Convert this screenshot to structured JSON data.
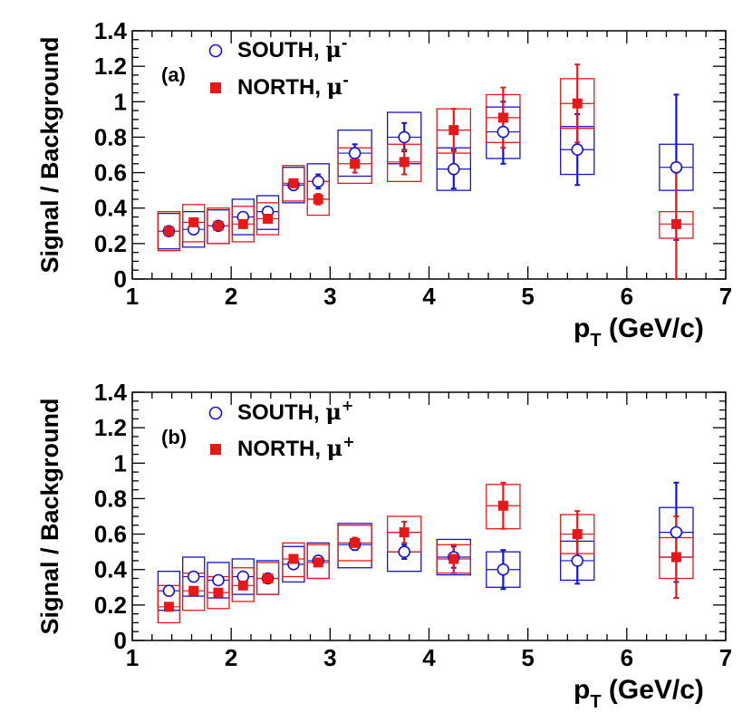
{
  "colors": {
    "south": "#1414d2",
    "north": "#e81818",
    "axis": "#000000"
  },
  "chart_data": [
    {
      "type": "scatter",
      "panel_label": "(a)",
      "ylabel": "Signal / Background",
      "xlabel": "p",
      "xlabel_sub": "T",
      "xlabel_unit": " (GeV/c)",
      "xlim": [
        1,
        7
      ],
      "ylim": [
        0,
        1.4
      ],
      "xticks": [
        "1",
        "2",
        "3",
        "4",
        "5",
        "6",
        "7"
      ],
      "yticks": [
        "0",
        "0.2",
        "0.4",
        "0.6",
        "0.8",
        "1",
        "1.2",
        "1.4"
      ],
      "series": [
        {
          "name": "SOUTH",
          "particle": "μ",
          "charge": "-",
          "marker": "open-circle",
          "points": [
            {
              "x": 1.37,
              "y": 0.27,
              "ylo": 0.26,
              "yhi": 0.28,
              "sys_lo": 0.17,
              "sys_hi": 0.37
            },
            {
              "x": 1.62,
              "y": 0.28,
              "ylo": 0.27,
              "yhi": 0.29,
              "sys_lo": 0.18,
              "sys_hi": 0.38
            },
            {
              "x": 1.87,
              "y": 0.3,
              "ylo": 0.29,
              "yhi": 0.31,
              "sys_lo": 0.2,
              "sys_hi": 0.39
            },
            {
              "x": 2.12,
              "y": 0.35,
              "ylo": 0.33,
              "yhi": 0.37,
              "sys_lo": 0.25,
              "sys_hi": 0.45
            },
            {
              "x": 2.37,
              "y": 0.38,
              "ylo": 0.36,
              "yhi": 0.4,
              "sys_lo": 0.28,
              "sys_hi": 0.47
            },
            {
              "x": 2.63,
              "y": 0.53,
              "ylo": 0.51,
              "yhi": 0.55,
              "sys_lo": 0.43,
              "sys_hi": 0.63
            },
            {
              "x": 2.88,
              "y": 0.55,
              "ylo": 0.51,
              "yhi": 0.59,
              "sys_lo": 0.45,
              "sys_hi": 0.65
            },
            {
              "x": 3.25,
              "y": 0.71,
              "ylo": 0.66,
              "yhi": 0.76,
              "sys_lo": 0.58,
              "sys_hi": 0.84
            },
            {
              "x": 3.75,
              "y": 0.8,
              "ylo": 0.72,
              "yhi": 0.88,
              "sys_lo": 0.65,
              "sys_hi": 0.94
            },
            {
              "x": 4.25,
              "y": 0.62,
              "ylo": 0.51,
              "yhi": 0.73,
              "sys_lo": 0.5,
              "sys_hi": 0.74
            },
            {
              "x": 4.75,
              "y": 0.83,
              "ylo": 0.65,
              "yhi": 1.0,
              "sys_lo": 0.68,
              "sys_hi": 0.97
            },
            {
              "x": 5.5,
              "y": 0.73,
              "ylo": 0.53,
              "yhi": 0.93,
              "sys_lo": 0.59,
              "sys_hi": 0.86
            },
            {
              "x": 6.5,
              "y": 0.63,
              "ylo": 0.22,
              "yhi": 1.04,
              "sys_lo": 0.5,
              "sys_hi": 0.76
            }
          ]
        },
        {
          "name": "NORTH",
          "particle": "μ",
          "charge": "-",
          "marker": "filled-square",
          "points": [
            {
              "x": 1.37,
              "y": 0.27,
              "ylo": 0.26,
              "yhi": 0.28,
              "sys_lo": 0.16,
              "sys_hi": 0.38
            },
            {
              "x": 1.62,
              "y": 0.32,
              "ylo": 0.31,
              "yhi": 0.33,
              "sys_lo": 0.21,
              "sys_hi": 0.42
            },
            {
              "x": 1.87,
              "y": 0.3,
              "ylo": 0.29,
              "yhi": 0.31,
              "sys_lo": 0.2,
              "sys_hi": 0.4
            },
            {
              "x": 2.12,
              "y": 0.31,
              "ylo": 0.3,
              "yhi": 0.32,
              "sys_lo": 0.21,
              "sys_hi": 0.41
            },
            {
              "x": 2.37,
              "y": 0.34,
              "ylo": 0.33,
              "yhi": 0.35,
              "sys_lo": 0.25,
              "sys_hi": 0.43
            },
            {
              "x": 2.63,
              "y": 0.54,
              "ylo": 0.53,
              "yhi": 0.55,
              "sys_lo": 0.44,
              "sys_hi": 0.64
            },
            {
              "x": 2.88,
              "y": 0.45,
              "ylo": 0.42,
              "yhi": 0.48,
              "sys_lo": 0.36,
              "sys_hi": 0.55
            },
            {
              "x": 3.25,
              "y": 0.65,
              "ylo": 0.6,
              "yhi": 0.7,
              "sys_lo": 0.54,
              "sys_hi": 0.74
            },
            {
              "x": 3.75,
              "y": 0.66,
              "ylo": 0.59,
              "yhi": 0.73,
              "sys_lo": 0.55,
              "sys_hi": 0.76
            },
            {
              "x": 4.25,
              "y": 0.84,
              "ylo": 0.72,
              "yhi": 0.96,
              "sys_lo": 0.71,
              "sys_hi": 0.96
            },
            {
              "x": 4.75,
              "y": 0.91,
              "ylo": 0.74,
              "yhi": 1.08,
              "sys_lo": 0.77,
              "sys_hi": 1.04
            },
            {
              "x": 5.5,
              "y": 0.99,
              "ylo": 0.77,
              "yhi": 1.21,
              "sys_lo": 0.85,
              "sys_hi": 1.13
            },
            {
              "x": 6.5,
              "y": 0.31,
              "ylo": 0.0,
              "yhi": 0.6,
              "sys_lo": 0.23,
              "sys_hi": 0.38
            }
          ]
        }
      ]
    },
    {
      "type": "scatter",
      "panel_label": "(b)",
      "ylabel": "Signal / Background",
      "xlabel": "p",
      "xlabel_sub": "T",
      "xlabel_unit": " (GeV/c)",
      "xlim": [
        1,
        7
      ],
      "ylim": [
        0,
        1.4
      ],
      "xticks": [
        "1",
        "2",
        "3",
        "4",
        "5",
        "6",
        "7"
      ],
      "yticks": [
        "0",
        "0.2",
        "0.4",
        "0.6",
        "0.8",
        "1",
        "1.2",
        "1.4"
      ],
      "series": [
        {
          "name": "SOUTH",
          "particle": "μ",
          "charge": "+",
          "marker": "open-circle",
          "points": [
            {
              "x": 1.37,
              "y": 0.28,
              "ylo": 0.27,
              "yhi": 0.29,
              "sys_lo": 0.17,
              "sys_hi": 0.39
            },
            {
              "x": 1.62,
              "y": 0.36,
              "ylo": 0.35,
              "yhi": 0.37,
              "sys_lo": 0.25,
              "sys_hi": 0.47
            },
            {
              "x": 1.87,
              "y": 0.34,
              "ylo": 0.33,
              "yhi": 0.35,
              "sys_lo": 0.24,
              "sys_hi": 0.44
            },
            {
              "x": 2.12,
              "y": 0.36,
              "ylo": 0.35,
              "yhi": 0.37,
              "sys_lo": 0.26,
              "sys_hi": 0.46
            },
            {
              "x": 2.37,
              "y": 0.35,
              "ylo": 0.34,
              "yhi": 0.36,
              "sys_lo": 0.26,
              "sys_hi": 0.45
            },
            {
              "x": 2.63,
              "y": 0.43,
              "ylo": 0.42,
              "yhi": 0.44,
              "sys_lo": 0.33,
              "sys_hi": 0.53
            },
            {
              "x": 2.88,
              "y": 0.45,
              "ylo": 0.43,
              "yhi": 0.47,
              "sys_lo": 0.35,
              "sys_hi": 0.55
            },
            {
              "x": 3.25,
              "y": 0.54,
              "ylo": 0.51,
              "yhi": 0.57,
              "sys_lo": 0.41,
              "sys_hi": 0.66
            },
            {
              "x": 3.75,
              "y": 0.5,
              "ylo": 0.46,
              "yhi": 0.54,
              "sys_lo": 0.39,
              "sys_hi": 0.61
            },
            {
              "x": 4.25,
              "y": 0.47,
              "ylo": 0.41,
              "yhi": 0.53,
              "sys_lo": 0.37,
              "sys_hi": 0.57
            },
            {
              "x": 4.75,
              "y": 0.4,
              "ylo": 0.29,
              "yhi": 0.51,
              "sys_lo": 0.3,
              "sys_hi": 0.5
            },
            {
              "x": 5.5,
              "y": 0.45,
              "ylo": 0.32,
              "yhi": 0.58,
              "sys_lo": 0.34,
              "sys_hi": 0.56
            },
            {
              "x": 6.5,
              "y": 0.61,
              "ylo": 0.33,
              "yhi": 0.89,
              "sys_lo": 0.47,
              "sys_hi": 0.75
            }
          ]
        },
        {
          "name": "NORTH",
          "particle": "μ",
          "charge": "+",
          "marker": "filled-square",
          "points": [
            {
              "x": 1.37,
              "y": 0.19,
              "ylo": 0.18,
              "yhi": 0.2,
              "sys_lo": 0.1,
              "sys_hi": 0.31
            },
            {
              "x": 1.62,
              "y": 0.28,
              "ylo": 0.27,
              "yhi": 0.29,
              "sys_lo": 0.17,
              "sys_hi": 0.38
            },
            {
              "x": 1.87,
              "y": 0.27,
              "ylo": 0.26,
              "yhi": 0.28,
              "sys_lo": 0.18,
              "sys_hi": 0.36
            },
            {
              "x": 2.12,
              "y": 0.31,
              "ylo": 0.3,
              "yhi": 0.32,
              "sys_lo": 0.22,
              "sys_hi": 0.41
            },
            {
              "x": 2.37,
              "y": 0.35,
              "ylo": 0.34,
              "yhi": 0.36,
              "sys_lo": 0.26,
              "sys_hi": 0.44
            },
            {
              "x": 2.63,
              "y": 0.46,
              "ylo": 0.45,
              "yhi": 0.47,
              "sys_lo": 0.36,
              "sys_hi": 0.55
            },
            {
              "x": 2.88,
              "y": 0.44,
              "ylo": 0.42,
              "yhi": 0.46,
              "sys_lo": 0.35,
              "sys_hi": 0.54
            },
            {
              "x": 3.25,
              "y": 0.55,
              "ylo": 0.52,
              "yhi": 0.58,
              "sys_lo": 0.45,
              "sys_hi": 0.65
            },
            {
              "x": 3.75,
              "y": 0.61,
              "ylo": 0.55,
              "yhi": 0.67,
              "sys_lo": 0.5,
              "sys_hi": 0.7
            },
            {
              "x": 4.25,
              "y": 0.46,
              "ylo": 0.38,
              "yhi": 0.54,
              "sys_lo": 0.38,
              "sys_hi": 0.54
            },
            {
              "x": 4.75,
              "y": 0.76,
              "ylo": 0.63,
              "yhi": 0.89,
              "sys_lo": 0.63,
              "sys_hi": 0.88
            },
            {
              "x": 5.5,
              "y": 0.6,
              "ylo": 0.47,
              "yhi": 0.73,
              "sys_lo": 0.49,
              "sys_hi": 0.71
            },
            {
              "x": 6.5,
              "y": 0.47,
              "ylo": 0.24,
              "yhi": 0.7,
              "sys_lo": 0.35,
              "sys_hi": 0.58
            }
          ]
        }
      ]
    }
  ]
}
